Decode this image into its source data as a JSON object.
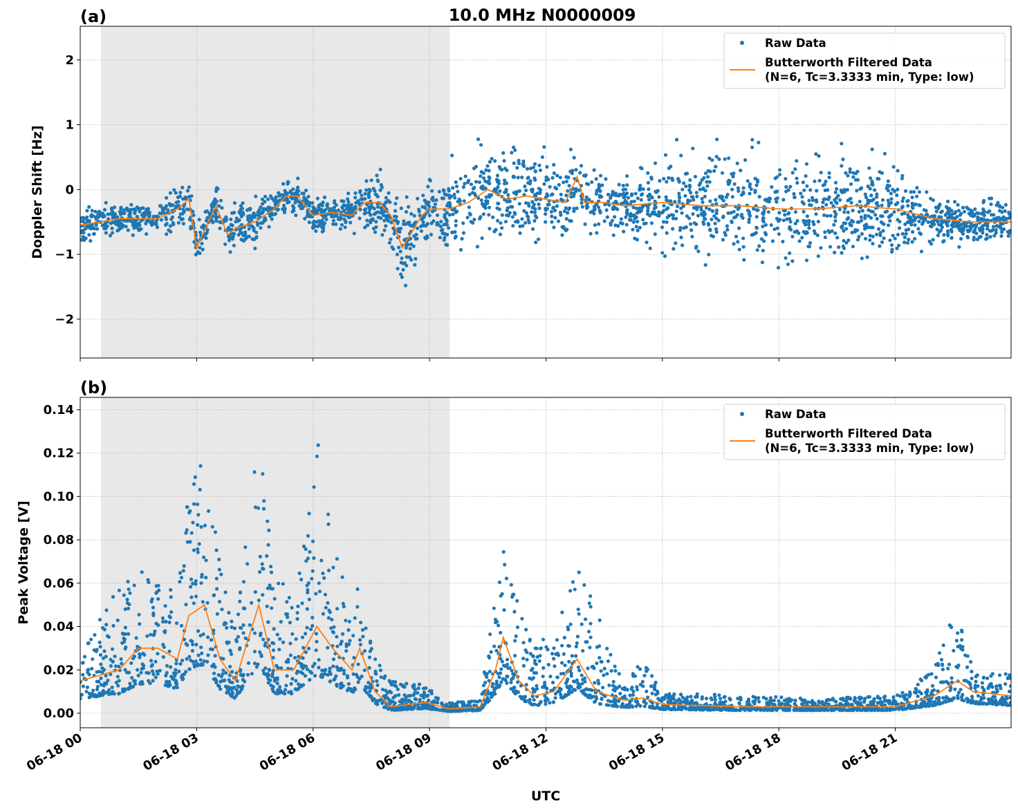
{
  "title": "10.0 MHz N0000009",
  "chart_data": [
    {
      "type": "scatter",
      "panel_label": "(a)",
      "ylabel": "Doppler Shift [Hz]",
      "xlabel": "",
      "xlim": [
        "06-18 00:00",
        "06-18 23:59"
      ],
      "ylim": [
        -2.6,
        2.52
      ],
      "yticks": [
        2,
        1,
        0,
        -1,
        -2
      ],
      "ytick_labels": [
        "2",
        "1",
        "0",
        "−1",
        "−2"
      ],
      "xticks": [
        "06-18 00",
        "06-18 03",
        "06-18 06",
        "06-18 09",
        "06-18 12",
        "06-18 15",
        "06-18 18",
        "06-18 21"
      ],
      "grid": true,
      "shaded_region": [
        "06-18 00:32",
        "06-18 09:31"
      ],
      "legend": {
        "placement": "top-right",
        "entries": [
          "Raw Data",
          "Butterworth Filtered Data",
          "(N=6, Tc=3.3333 min, Type: low)"
        ]
      },
      "series": [
        {
          "name": "Raw Data",
          "kind": "scatter",
          "color": "#1f77b4",
          "x": [
            "06-18 00:00",
            "06-18 02:00",
            "06-18 02:30",
            "06-18 04:30",
            "06-18 05:00",
            "06-18 07:00",
            "06-18 07:30",
            "06-18 09:00",
            "06-18 10:00",
            "06-18 14:00",
            "06-18 15:00",
            "06-18 21:00",
            "06-18 22:00",
            "06-18 23:59"
          ],
          "half_spread": [
            0.25,
            0.25,
            0.35,
            0.35,
            0.25,
            0.25,
            0.5,
            0.6,
            0.8,
            0.45,
            0.8,
            0.8,
            0.35,
            0.35
          ]
        },
        {
          "name": "Butterworth Filtered Data",
          "kind": "line",
          "color": "#ff7f0e",
          "x": [
            "06-18 00:00",
            "06-18 00:30",
            "06-18 01:00",
            "06-18 01:30",
            "06-18 02:00",
            "06-18 02:30",
            "06-18 02:48",
            "06-18 03:00",
            "06-18 03:18",
            "06-18 03:30",
            "06-18 03:48",
            "06-18 04:00",
            "06-18 04:30",
            "06-18 05:00",
            "06-18 05:18",
            "06-18 05:36",
            "06-18 06:00",
            "06-18 06:30",
            "06-18 07:00",
            "06-18 07:18",
            "06-18 07:42",
            "06-18 08:00",
            "06-18 08:18",
            "06-18 08:30",
            "06-18 08:48",
            "06-18 09:00",
            "06-18 09:30",
            "06-18 10:00",
            "06-18 10:30",
            "06-18 11:00",
            "06-18 11:30",
            "06-18 12:00",
            "06-18 12:30",
            "06-18 12:48",
            "06-18 13:00",
            "06-18 13:30",
            "06-18 14:00",
            "06-18 15:00",
            "06-18 16:00",
            "06-18 17:00",
            "06-18 18:00",
            "06-18 19:00",
            "06-18 20:00",
            "06-18 21:00",
            "06-18 22:00",
            "06-18 23:00",
            "06-18 23:59"
          ],
          "y": [
            -0.55,
            -0.5,
            -0.45,
            -0.45,
            -0.45,
            -0.3,
            -0.15,
            -0.9,
            -0.5,
            -0.25,
            -0.7,
            -0.6,
            -0.5,
            -0.3,
            -0.1,
            -0.1,
            -0.4,
            -0.35,
            -0.4,
            -0.2,
            -0.2,
            -0.4,
            -0.9,
            -0.7,
            -0.4,
            -0.3,
            -0.3,
            -0.2,
            0.0,
            -0.15,
            -0.1,
            -0.15,
            -0.2,
            0.2,
            -0.2,
            -0.2,
            -0.25,
            -0.2,
            -0.25,
            -0.25,
            -0.3,
            -0.3,
            -0.25,
            -0.3,
            -0.45,
            -0.5,
            -0.5
          ]
        }
      ]
    },
    {
      "type": "scatter",
      "panel_label": "(b)",
      "ylabel": "Peak Voltage [V]",
      "xlabel": "UTC",
      "xlim": [
        "06-18 00:00",
        "06-18 23:59"
      ],
      "ylim": [
        -0.0067,
        0.1457
      ],
      "yticks": [
        0.0,
        0.02,
        0.04,
        0.06,
        0.08,
        0.1,
        0.12,
        0.14
      ],
      "ytick_labels": [
        "0.00",
        "0.02",
        "0.04",
        "0.06",
        "0.08",
        "0.10",
        "0.12",
        "0.14"
      ],
      "xticks": [
        "06-18 00",
        "06-18 03",
        "06-18 06",
        "06-18 09",
        "06-18 12",
        "06-18 15",
        "06-18 18",
        "06-18 21"
      ],
      "grid": true,
      "shaded_region": [
        "06-18 00:32",
        "06-18 09:31"
      ],
      "legend": {
        "placement": "top-right",
        "entries": [
          "Raw Data",
          "Butterworth Filtered Data",
          "(N=6, Tc=3.3333 min, Type: low)"
        ]
      },
      "series": [
        {
          "name": "Raw Data",
          "kind": "scatter",
          "color": "#1f77b4",
          "x": [
            "06-18 00:00",
            "06-18 01:00",
            "06-18 01:30",
            "06-18 02:00",
            "06-18 02:30",
            "06-18 02:48",
            "06-18 03:12",
            "06-18 03:36",
            "06-18 04:00",
            "06-18 04:36",
            "06-18 05:00",
            "06-18 05:30",
            "06-18 06:06",
            "06-18 06:30",
            "06-18 07:00",
            "06-18 07:12",
            "06-18 07:36",
            "06-18 08:00",
            "06-18 08:54",
            "06-18 09:30",
            "06-18 10:18",
            "06-18 10:42",
            "06-18 10:54",
            "06-18 11:18",
            "06-18 11:42",
            "06-18 12:12",
            "06-18 12:48",
            "06-18 13:18",
            "06-18 14:00",
            "06-18 14:30",
            "06-18 15:00",
            "06-18 17:00",
            "06-18 19:00",
            "06-18 21:00",
            "06-18 22:00",
            "06-18 22:36",
            "06-18 23:00",
            "06-18 23:59"
          ],
          "max": [
            0.03,
            0.06,
            0.07,
            0.06,
            0.06,
            0.11,
            0.12,
            0.07,
            0.04,
            0.13,
            0.07,
            0.05,
            0.13,
            0.08,
            0.05,
            0.06,
            0.025,
            0.015,
            0.013,
            0.005,
            0.006,
            0.06,
            0.077,
            0.05,
            0.03,
            0.04,
            0.067,
            0.05,
            0.015,
            0.027,
            0.01,
            0.008,
            0.007,
            0.008,
            0.02,
            0.055,
            0.02,
            0.018
          ]
        },
        {
          "name": "Butterworth Filtered Data",
          "kind": "line",
          "color": "#ff7f0e",
          "x": [
            "06-18 00:00",
            "06-18 01:00",
            "06-18 01:30",
            "06-18 02:00",
            "06-18 02:30",
            "06-18 02:48",
            "06-18 03:12",
            "06-18 03:36",
            "06-18 04:00",
            "06-18 04:36",
            "06-18 05:00",
            "06-18 05:30",
            "06-18 06:06",
            "06-18 06:30",
            "06-18 07:00",
            "06-18 07:12",
            "06-18 07:36",
            "06-18 08:00",
            "06-18 08:54",
            "06-18 09:30",
            "06-18 10:18",
            "06-18 10:42",
            "06-18 10:54",
            "06-18 11:18",
            "06-18 11:42",
            "06-18 12:12",
            "06-18 12:48",
            "06-18 13:18",
            "06-18 14:00",
            "06-18 14:30",
            "06-18 15:00",
            "06-18 17:00",
            "06-18 19:00",
            "06-18 21:00",
            "06-18 22:00",
            "06-18 22:36",
            "06-18 23:00",
            "06-18 23:59"
          ],
          "y": [
            0.015,
            0.02,
            0.03,
            0.03,
            0.025,
            0.045,
            0.05,
            0.025,
            0.015,
            0.05,
            0.02,
            0.02,
            0.04,
            0.03,
            0.02,
            0.03,
            0.01,
            0.003,
            0.005,
            0.002,
            0.003,
            0.02,
            0.035,
            0.015,
            0.008,
            0.01,
            0.025,
            0.01,
            0.006,
            0.007,
            0.004,
            0.003,
            0.003,
            0.003,
            0.008,
            0.015,
            0.01,
            0.008
          ]
        }
      ]
    }
  ]
}
